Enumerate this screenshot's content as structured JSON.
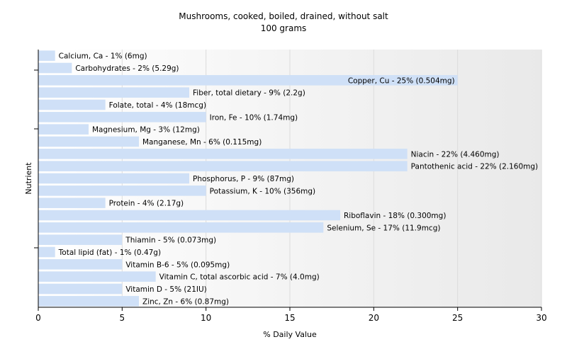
{
  "chart_data": {
    "type": "bar",
    "orientation": "horizontal",
    "title": "Mushrooms, cooked, boiled, drained, without salt",
    "subtitle": "100 grams",
    "xlabel": "% Daily Value",
    "ylabel": "Nutrient",
    "xlim": [
      0,
      30
    ],
    "xticks": [
      0,
      5,
      10,
      15,
      20,
      25,
      30
    ],
    "grid": true,
    "bar_color": "#cfe0f7",
    "categories": [
      "Calcium, Ca - 1% (6mg)",
      "Carbohydrates - 2% (5.29g)",
      "Copper, Cu - 25% (0.504mg)",
      "Fiber, total dietary - 9% (2.2g)",
      "Folate, total - 4% (18mcg)",
      "Iron, Fe - 10% (1.74mg)",
      "Magnesium, Mg - 3% (12mg)",
      "Manganese, Mn - 6% (0.115mg)",
      "Niacin - 22% (4.460mg)",
      "Pantothenic acid - 22% (2.160mg)",
      "Phosphorus, P - 9% (87mg)",
      "Potassium, K - 10% (356mg)",
      "Protein - 4% (2.17g)",
      "Riboflavin - 18% (0.300mg)",
      "Selenium, Se - 17% (11.9mcg)",
      "Thiamin - 5% (0.073mg)",
      "Total lipid (fat) - 1% (0.47g)",
      "Vitamin B-6 - 5% (0.095mg)",
      "Vitamin C, total ascorbic acid - 7% (4.0mg)",
      "Vitamin D - 5% (21IU)",
      "Zinc, Zn - 6% (0.87mg)"
    ],
    "values": [
      1,
      2,
      25,
      9,
      4,
      10,
      3,
      6,
      22,
      22,
      9,
      10,
      4,
      18,
      17,
      5,
      1,
      5,
      7,
      5,
      6
    ]
  }
}
